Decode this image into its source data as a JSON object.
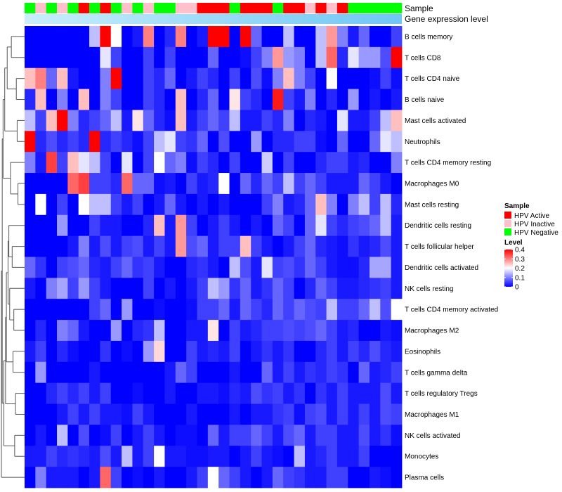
{
  "chart_data": {
    "type": "heatmap",
    "title": "",
    "annotation_tracks": [
      {
        "label": "Sample",
        "values": [
          "N",
          "I",
          "N",
          "I",
          "N",
          "A",
          "N",
          "A",
          "N",
          "I",
          "N",
          "I",
          "N",
          "N",
          "I",
          "I",
          "A",
          "A",
          "A",
          "N",
          "A",
          "A",
          "A",
          "N",
          "A",
          "A",
          "I",
          "A",
          "I",
          "A",
          "N",
          "N",
          "N",
          "N",
          "N"
        ]
      },
      {
        "label": "Gene expression level",
        "gradient": [
          "#c9eefb",
          "#6fc6f5"
        ]
      }
    ],
    "row_labels": [
      "B cells memory",
      "T cells CD8",
      "T cells CD4 naive",
      "B cells naive",
      "Mast cells activated",
      "Neutrophils",
      "T cells CD4 memory resting",
      "Macrophages M0",
      "Mast cells resting",
      "Dendritic cells resting",
      "T cells follicular helper",
      "Dendritic cells activated",
      "NK cells resting",
      "T cells CD4 memory activated",
      "Macrophages M2",
      "Eosinophils",
      "T cells gamma delta",
      "T cells regulatory  Tregs",
      "Macrophages M1",
      "NK cells activated",
      "Monocytes",
      "Plasma cells"
    ],
    "color_scale": {
      "min": 0,
      "max": 0.4,
      "colors": [
        "#0000ff",
        "#ffffff",
        "#ff0000"
      ],
      "ticks": [
        0,
        0.1,
        0.2,
        0.3,
        0.4
      ],
      "tick_labels": [
        "0",
        "0.1",
        "0.2",
        "0.3",
        "0.4"
      ]
    },
    "values": [
      [
        0,
        0,
        0,
        0,
        0,
        0,
        0.15,
        0.4,
        0.2,
        0,
        0.02,
        0.3,
        0,
        0.03,
        0.3,
        0,
        0.02,
        0.4,
        0.4,
        0,
        0.4,
        0.08,
        0,
        0,
        0.15,
        0,
        0,
        0.15,
        0.28,
        0.1,
        0.02,
        0.08,
        0,
        0,
        0.05
      ],
      [
        0,
        0,
        0,
        0,
        0,
        0,
        0,
        0.18,
        0.05,
        0,
        0,
        0.05,
        0,
        0.05,
        0,
        0,
        0,
        0.08,
        0,
        0,
        0.01,
        0.05,
        0.1,
        0.28,
        0.12,
        0.1,
        0,
        0.15,
        0.32,
        0.03,
        0.18,
        0.12,
        0.12,
        0.06,
        0.4
      ],
      [
        0.25,
        0.3,
        0.08,
        0.25,
        0.02,
        0,
        0,
        0.1,
        0.4,
        0,
        0,
        0.05,
        0.03,
        0.08,
        0,
        0.02,
        0.05,
        0.03,
        0,
        0.05,
        0,
        0.06,
        0.01,
        0.1,
        0.25,
        0.1,
        0.05,
        0,
        0.2,
        0,
        0,
        0,
        0.01,
        0.05,
        0.01
      ],
      [
        0.03,
        0.25,
        0,
        0.1,
        0,
        0.25,
        0,
        0.1,
        0.05,
        0,
        0,
        0.05,
        0.03,
        0,
        0.25,
        0,
        0.03,
        0.08,
        0,
        0.22,
        0.05,
        0.03,
        0,
        0.38,
        0.05,
        0.02,
        0.1,
        0,
        0.03,
        0,
        0.12,
        0,
        0.02,
        0,
        0.02
      ],
      [
        0.15,
        0.05,
        0.25,
        0.4,
        0.1,
        0.03,
        0.05,
        0.08,
        0.15,
        0.02,
        0.22,
        0.08,
        0.03,
        0.01,
        0.25,
        0.02,
        0.05,
        0.08,
        0.05,
        0.15,
        0.02,
        0.02,
        0.05,
        0.03,
        0.1,
        0,
        0.03,
        0.02,
        0,
        0.18,
        0.02,
        0.02,
        0.05,
        0.15,
        0.25
      ],
      [
        0.4,
        0.03,
        0.06,
        0.03,
        0.05,
        0.03,
        0.4,
        0.03,
        0.05,
        0.03,
        0.01,
        0.05,
        0.15,
        0.18,
        0.05,
        0.04,
        0.08,
        0,
        0.06,
        0,
        0,
        0.12,
        0,
        0.03,
        0.03,
        0.05,
        0.05,
        0.01,
        0,
        0.08,
        0,
        0,
        0.08,
        0.18,
        0.15
      ],
      [
        0.1,
        0.02,
        0.35,
        0.05,
        0.25,
        0.18,
        0.15,
        0.05,
        0,
        0.18,
        0,
        0.05,
        0.2,
        0.08,
        0.1,
        0.01,
        0.05,
        0.03,
        0,
        0.05,
        0,
        0,
        0.16,
        0,
        0.05,
        0,
        0,
        0.03,
        0.05,
        0.05,
        0.02,
        0.03,
        0,
        0,
        0.1
      ],
      [
        0,
        0,
        0,
        0,
        0.32,
        0.35,
        0.05,
        0.05,
        0.03,
        0.32,
        0.08,
        0.08,
        0.01,
        0.02,
        0,
        0.05,
        0.02,
        0.03,
        0.2,
        0,
        0.08,
        0.03,
        0.08,
        0.05,
        0.15,
        0.05,
        0.08,
        0.05,
        0.02,
        0.02,
        0.02,
        0.08,
        0.05,
        0.02,
        0
      ],
      [
        0,
        0.2,
        0,
        0.05,
        0,
        0.2,
        0.15,
        0.15,
        0.05,
        0.02,
        0.05,
        0,
        0.02,
        0.08,
        0.02,
        0,
        0.02,
        0,
        0.02,
        0,
        0,
        0,
        0.05,
        0.1,
        0.02,
        0.03,
        0.08,
        0.25,
        0.1,
        0,
        0.1,
        0.15,
        0.05,
        0.15,
        0.03
      ],
      [
        0,
        0,
        0,
        0.12,
        0,
        0,
        0.05,
        0.02,
        0.02,
        0,
        0,
        0.03,
        0.25,
        0.02,
        0.28,
        0.05,
        0,
        0.02,
        0.05,
        0.02,
        0,
        0.02,
        0,
        0.08,
        0.05,
        0,
        0.08,
        0.18,
        0.05,
        0.03,
        0.05,
        0.06,
        0.08,
        0.15,
        0.02
      ],
      [
        0,
        0,
        0,
        0,
        0.02,
        0.1,
        0.02,
        0.06,
        0.02,
        0.05,
        0.06,
        0.02,
        0.05,
        0.02,
        0.28,
        0.06,
        0.08,
        0.02,
        0.05,
        0.05,
        0.25,
        0.05,
        0.02,
        0,
        0.02,
        0.05,
        0.08,
        0.03,
        0.02,
        0.01,
        0.04,
        0.02,
        0.03,
        0.06,
        0.02
      ],
      [
        0.08,
        0.04,
        0,
        0.05,
        0.06,
        0.08,
        0.03,
        0.02,
        0.05,
        0.08,
        0.04,
        0.05,
        0.02,
        0,
        0,
        0.03,
        0.04,
        0.02,
        0,
        0.15,
        0.06,
        0.02,
        0.18,
        0.05,
        0.06,
        0.04,
        0.08,
        0.05,
        0.02,
        0.01,
        0.01,
        0.03,
        0.13,
        0.13,
        0.02
      ],
      [
        0.02,
        0,
        0.1,
        0.13,
        0.05,
        0.12,
        0.05,
        0.02,
        0,
        0,
        0,
        0.05,
        0,
        0.02,
        0,
        0.02,
        0.05,
        0.15,
        0.12,
        0.04,
        0.08,
        0.02,
        0.04,
        0.08,
        0.05,
        0,
        0.03,
        0.08,
        0.05,
        0.02,
        0.02,
        0.03,
        0.04,
        0.05,
        0.02
      ],
      [
        0,
        0,
        0,
        0,
        0,
        0,
        0.05,
        0.08,
        0,
        0.12,
        0,
        0,
        0.01,
        0,
        0,
        0.01,
        0.05,
        0.05,
        0.08,
        0.02,
        0.08,
        0.05,
        0.03,
        0.08,
        0.05,
        0.08,
        0.06,
        0.05,
        0.15,
        0.05,
        0.05,
        0.08,
        0.15,
        0.06,
        0.2
      ],
      [
        0,
        0.03,
        0,
        0.1,
        0.08,
        0.02,
        0,
        0,
        0.12,
        0,
        0.03,
        0.04,
        0.15,
        0,
        0,
        0.02,
        0.02,
        0.22,
        0,
        0.05,
        0.02,
        0.03,
        0.05,
        0.05,
        0.06,
        0.05,
        0.06,
        0.08,
        0.05,
        0.02,
        0.03,
        0,
        0,
        0.02,
        0.01
      ],
      [
        0.02,
        0.05,
        0,
        0.03,
        0.01,
        0,
        0,
        0.04,
        0,
        0.01,
        0,
        0.12,
        0.23,
        0,
        0,
        0.05,
        0.02,
        0.03,
        0.02,
        0.05,
        0,
        0.02,
        0.04,
        0.02,
        0.04,
        0,
        0,
        0.03,
        0.05,
        0.02,
        0.05,
        0.03,
        0.06,
        0.03,
        0.02
      ],
      [
        0,
        0.12,
        0,
        0,
        0,
        0,
        0.02,
        0,
        0,
        0,
        0,
        0,
        0,
        0.02,
        0.08,
        0.05,
        0,
        0,
        0,
        0.02,
        0,
        0,
        0.08,
        0.02,
        0.05,
        0.02,
        0.04,
        0.03,
        0.05,
        0.04,
        0,
        0.08,
        0.02,
        0.03,
        0.05
      ],
      [
        0,
        0,
        0.03,
        0.05,
        0.03,
        0.05,
        0.02,
        0.05,
        0,
        0,
        0.01,
        0,
        0,
        0.02,
        0,
        0,
        0.02,
        0.02,
        0.01,
        0.03,
        0.02,
        0.06,
        0.04,
        0.05,
        0.02,
        0.04,
        0,
        0.04,
        0.02,
        0.05,
        0.02,
        0.02,
        0.02,
        0.06,
        0.02
      ],
      [
        0,
        0,
        0,
        0.02,
        0.05,
        0.02,
        0.05,
        0.02,
        0.02,
        0.01,
        0.05,
        0.02,
        0,
        0,
        0,
        0.02,
        0,
        0,
        0,
        0.02,
        0,
        0.02,
        0.02,
        0.04,
        0.05,
        0.01,
        0.05,
        0.06,
        0.02,
        0.05,
        0.02,
        0.05,
        0.02,
        0.06,
        0.05
      ],
      [
        0,
        0.02,
        0,
        0.15,
        0,
        0.06,
        0,
        0.01,
        0.05,
        0,
        0.02,
        0.05,
        0.02,
        0,
        0.01,
        0.01,
        0,
        0.08,
        0.02,
        0.05,
        0.05,
        0.08,
        0.05,
        0.02,
        0.06,
        0.08,
        0.02,
        0.05,
        0.05,
        0.02,
        0.02,
        0.06,
        0.02,
        0.04,
        0.01
      ],
      [
        0.02,
        0.02,
        0.05,
        0.03,
        0.04,
        0.03,
        0.02,
        0.06,
        0.02,
        0.15,
        0.02,
        0.05,
        0.2,
        0.02,
        0.02,
        0.01,
        0.01,
        0.02,
        0.02,
        0,
        0.02,
        0.05,
        0.02,
        0.01,
        0,
        0.15,
        0.02,
        0.03,
        0.05,
        0.02,
        0.02,
        0.05,
        0,
        0,
        0
      ],
      [
        0,
        0.1,
        0.02,
        0.02,
        0.02,
        0,
        0.02,
        0.32,
        0.05,
        0,
        0.01,
        0,
        0.02,
        0,
        0,
        0.02,
        0.05,
        0.2,
        0.08,
        0.05,
        0.02,
        0,
        0.02,
        0.08,
        0.05,
        0.04,
        0.02,
        0.02,
        0.05,
        0.05,
        0,
        0,
        0.02,
        0.01,
        0
      ]
    ],
    "legends": [
      {
        "title": "Sample",
        "entries": [
          {
            "key": "A",
            "label": "HPV Active",
            "color": "#ff0000"
          },
          {
            "key": "I",
            "label": "HPV Inactive",
            "color": "#ffc0cb"
          },
          {
            "key": "N",
            "label": "HPV Negative",
            "color": "#00ff00"
          }
        ]
      },
      {
        "title": "Level"
      }
    ],
    "dendrogram": "rows",
    "colors": {
      "border": "#ffffff",
      "tick": "#000000",
      "tree": "#555555"
    }
  }
}
